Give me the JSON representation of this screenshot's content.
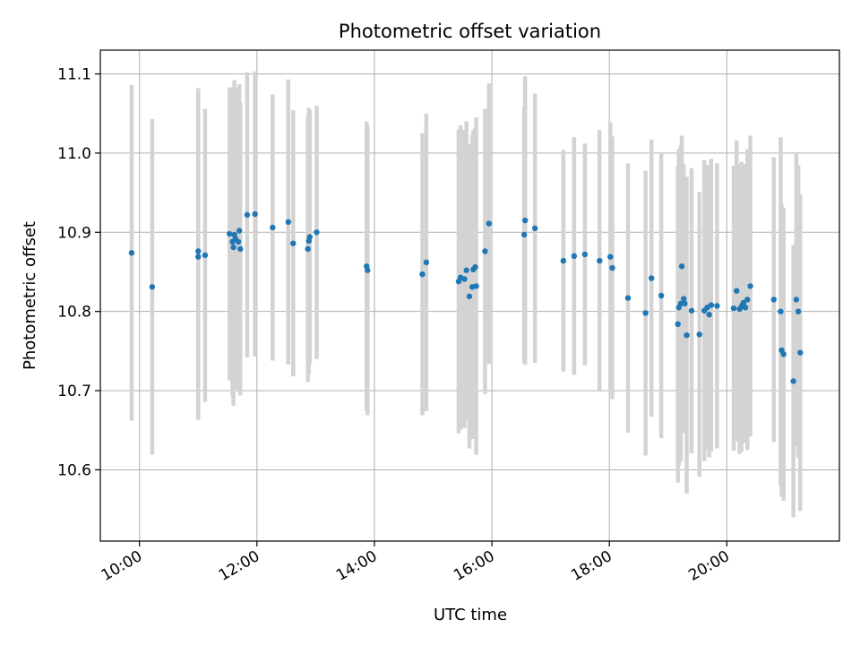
{
  "chart_data": {
    "type": "scatter",
    "title": "Photometric offset variation",
    "xlabel": "UTC time",
    "ylabel": "Photometric offset",
    "x_unit": "hour (UTC)",
    "xlim": [
      "09:20",
      "21:55"
    ],
    "ylim": [
      10.51,
      11.13
    ],
    "x_ticks": [
      {
        "t": "10:00",
        "label": "10:00"
      },
      {
        "t": "12:00",
        "label": "12:00"
      },
      {
        "t": "14:00",
        "label": "14:00"
      },
      {
        "t": "16:00",
        "label": "16:00"
      },
      {
        "t": "18:00",
        "label": "18:00"
      },
      {
        "t": "20:00",
        "label": "20:00"
      }
    ],
    "y_ticks": [
      {
        "v": 10.6,
        "label": "10.6"
      },
      {
        "v": 10.7,
        "label": "10.7"
      },
      {
        "v": 10.8,
        "label": "10.8"
      },
      {
        "v": 10.9,
        "label": "10.9"
      },
      {
        "v": 11.0,
        "label": "11.0"
      },
      {
        "v": 11.1,
        "label": "11.1"
      }
    ],
    "grid": true,
    "colors": {
      "points": "#1f77b4",
      "errorbars": "#d3d3d3",
      "grid": "#b0b0b0"
    },
    "series": [
      {
        "x": [
          "09:52",
          "10:13",
          "11:00",
          "11:00",
          "11:07",
          "11:32",
          "11:35",
          "11:36",
          "11:37",
          "11:38",
          "11:41",
          "11:42",
          "11:43",
          "11:50",
          "11:58",
          "12:16",
          "12:32",
          "12:37",
          "12:52",
          "12:53",
          "12:54",
          "13:01",
          "13:52",
          "13:53",
          "14:49",
          "14:53",
          "15:26",
          "15:28",
          "15:32",
          "15:34",
          "15:37",
          "15:40",
          "15:41",
          "15:43",
          "15:44",
          "15:53",
          "15:57",
          "16:33",
          "16:34",
          "16:44",
          "17:13",
          "17:24",
          "17:35",
          "17:50",
          "18:01",
          "18:03",
          "18:19",
          "18:37",
          "18:43",
          "18:53",
          "19:10",
          "19:11",
          "19:13",
          "19:14",
          "19:16",
          "19:17",
          "19:19",
          "19:24",
          "19:32",
          "19:37",
          "19:40",
          "19:42",
          "19:44",
          "19:50",
          "20:07",
          "20:10",
          "20:13",
          "20:15",
          "20:16",
          "20:17",
          "20:19",
          "20:21",
          "20:24",
          "20:48",
          "20:55",
          "20:56",
          "20:58",
          "21:08",
          "21:11",
          "21:13",
          "21:15"
        ],
        "y": [
          10.874,
          10.831,
          10.876,
          10.869,
          10.871,
          10.898,
          10.888,
          10.881,
          10.897,
          10.892,
          10.888,
          10.902,
          10.879,
          10.922,
          10.923,
          10.906,
          10.913,
          10.886,
          10.879,
          10.889,
          10.894,
          10.9,
          10.857,
          10.852,
          10.847,
          10.862,
          10.838,
          10.843,
          10.841,
          10.852,
          10.819,
          10.831,
          10.853,
          10.856,
          10.832,
          10.876,
          10.911,
          10.897,
          10.915,
          10.905,
          10.864,
          10.87,
          10.872,
          10.864,
          10.869,
          10.855,
          10.817,
          10.798,
          10.842,
          10.82,
          10.784,
          10.805,
          10.81,
          10.857,
          10.816,
          10.81,
          10.77,
          10.801,
          10.771,
          10.801,
          10.805,
          10.796,
          10.808,
          10.807,
          10.804,
          10.826,
          10.803,
          10.806,
          10.808,
          10.811,
          10.805,
          10.815,
          10.832,
          10.815,
          10.8,
          10.751,
          10.746,
          10.712,
          10.815,
          10.8,
          10.748
        ],
        "err": [
          0.212,
          0.212,
          0.206,
          0.206,
          0.185,
          0.185,
          0.195,
          0.2,
          0.195,
          0.19,
          0.187,
          0.185,
          0.185,
          0.18,
          0.18,
          0.168,
          0.18,
          0.168,
          0.168,
          0.168,
          0.16,
          0.16,
          0.183,
          0.183,
          0.178,
          0.188,
          0.192,
          0.192,
          0.188,
          0.188,
          0.192,
          0.192,
          0.176,
          0.176,
          0.213,
          0.18,
          0.177,
          0.162,
          0.182,
          0.17,
          0.14,
          0.15,
          0.14,
          0.165,
          0.17,
          0.166,
          0.17,
          0.18,
          0.175,
          0.18,
          0.2,
          0.2,
          0.2,
          0.165,
          0.17,
          0.16,
          0.2,
          0.18,
          0.18,
          0.19,
          0.18,
          0.18,
          0.185,
          0.18,
          0.18,
          0.19,
          0.183,
          0.183,
          0.175,
          0.175,
          0.17,
          0.19,
          0.19,
          0.18,
          0.22,
          0.185,
          0.185,
          0.172,
          0.185,
          0.185,
          0.2
        ]
      }
    ]
  }
}
